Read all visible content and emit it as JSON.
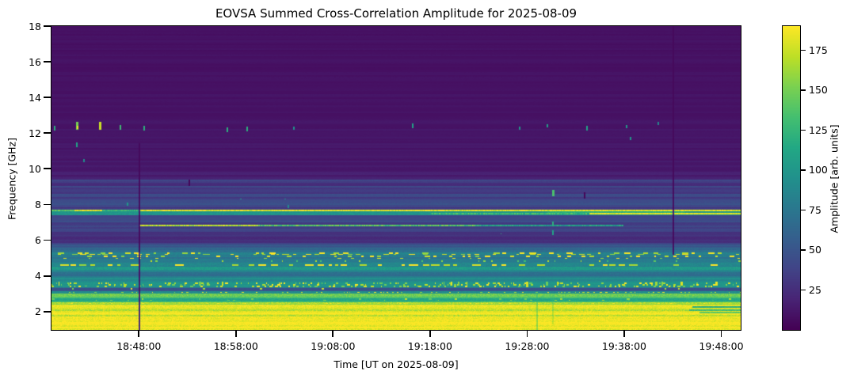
{
  "chart_data": {
    "type": "heatmap",
    "title": "EOVSA Summed Cross-Correlation Amplitude for 2025-08-09",
    "xlabel": "Time [UT on 2025-08-09]",
    "ylabel": "Frequency [GHz]",
    "x_range": [
      "18:39:00",
      "19:50:00"
    ],
    "x_ticks": [
      "18:48:00",
      "18:58:00",
      "19:08:00",
      "19:18:00",
      "19:28:00",
      "19:38:00",
      "19:48:00"
    ],
    "y_range": [
      0.97,
      18
    ],
    "y_ticks": [
      2,
      4,
      6,
      8,
      10,
      12,
      14,
      16,
      18
    ],
    "grid": false,
    "colorbar": {
      "label": "Amplitude [arb. units]",
      "ticks": [
        25,
        50,
        75,
        100,
        125,
        150,
        175
      ],
      "range": [
        0,
        190
      ],
      "colormap": "viridis",
      "position": "right"
    },
    "colormap_stops": [
      "#440154",
      "#482475",
      "#414487",
      "#355f8d",
      "#2a788e",
      "#21918c",
      "#22a884",
      "#44bf70",
      "#7ad151",
      "#bddf26",
      "#fde725"
    ],
    "render_seed": 7,
    "background_profile": [
      [
        18,
        9
      ],
      [
        13.5,
        9.5
      ],
      [
        12.5,
        11
      ],
      [
        11,
        12
      ],
      [
        10,
        13
      ],
      [
        9.6,
        16
      ],
      [
        9.3,
        28
      ],
      [
        8.8,
        34
      ],
      [
        8.2,
        38
      ],
      [
        7.8,
        37
      ],
      [
        7.68,
        40
      ],
      [
        7.4,
        38
      ],
      [
        7.0,
        36
      ],
      [
        6.5,
        32
      ],
      [
        6.25,
        27
      ],
      [
        5.9,
        29
      ],
      [
        5.6,
        48
      ],
      [
        5.35,
        68
      ],
      [
        5.0,
        82
      ],
      [
        4.7,
        82
      ],
      [
        4.45,
        96
      ],
      [
        4.1,
        74
      ],
      [
        3.8,
        90
      ],
      [
        3.6,
        94
      ],
      [
        3.4,
        92
      ],
      [
        3.28,
        48
      ],
      [
        3.16,
        60
      ],
      [
        3.05,
        95
      ],
      [
        2.9,
        145
      ],
      [
        2.7,
        118
      ],
      [
        2.55,
        150
      ],
      [
        2.42,
        172
      ],
      [
        2.32,
        186
      ],
      [
        1.0,
        186
      ]
    ],
    "row_banding": [
      {
        "f_hi": 18,
        "f_lo": 9.6,
        "strength": 0.22
      },
      {
        "f_hi": 9.6,
        "f_lo": 5.5,
        "strength": 0.3
      },
      {
        "f_hi": 5.5,
        "f_lo": 3.3,
        "strength": 0.18
      },
      {
        "f_hi": 3.3,
        "f_lo": 2.4,
        "strength": 0.12
      },
      {
        "f_hi": 2.4,
        "f_lo": 0.97,
        "strength": 0.04
      }
    ],
    "stripes": [
      {
        "f_hi": 9.38,
        "f_lo": 9.3,
        "amp": 40
      },
      {
        "f_hi": 9.05,
        "f_lo": 8.97,
        "amp": 42
      },
      {
        "f_hi": 8.6,
        "f_lo": 8.52,
        "amp": 45
      },
      {
        "f_hi": 8.14,
        "f_lo": 8.06,
        "amp": 44
      },
      {
        "f_hi": 7.92,
        "f_lo": 7.86,
        "amp": 40
      },
      {
        "f_hi": 7.68,
        "f_lo": 7.42,
        "amp": 98
      },
      {
        "f_hi": 7.62,
        "f_lo": 7.5,
        "amp": 118,
        "x0": 0.72,
        "x1": 0.92
      },
      {
        "f_hi": 6.22,
        "f_lo": 6.02,
        "amp": 22
      },
      {
        "f_hi": 5.96,
        "f_lo": 5.86,
        "amp": 25
      },
      {
        "f_hi": 5.52,
        "f_lo": 5.44,
        "amp": 62
      },
      {
        "f_hi": 5.4,
        "f_lo": 5.32,
        "amp": 70
      },
      {
        "f_hi": 5.32,
        "f_lo": 5.18,
        "amp": 85
      },
      {
        "f_hi": 5.16,
        "f_lo": 5.04,
        "amp": 82
      },
      {
        "f_hi": 4.74,
        "f_lo": 4.56,
        "amp": 88
      },
      {
        "f_hi": 4.5,
        "f_lo": 4.34,
        "amp": 102
      },
      {
        "f_hi": 4.22,
        "f_lo": 4.06,
        "amp": 70
      },
      {
        "f_hi": 3.32,
        "f_lo": 3.2,
        "amp": 46
      },
      {
        "f_hi": 3.16,
        "f_lo": 3.02,
        "amp": 92
      },
      {
        "f_hi": 3.0,
        "f_lo": 2.82,
        "amp": 148
      },
      {
        "f_hi": 2.74,
        "f_lo": 2.56,
        "amp": 112
      },
      {
        "f_hi": 2.54,
        "f_lo": 2.42,
        "amp": 168
      },
      {
        "f_hi": 2.12,
        "f_lo": 2.04,
        "amp": 168
      },
      {
        "f_hi": 1.82,
        "f_lo": 1.74,
        "amp": 170
      },
      {
        "f_hi": 2.32,
        "f_lo": 2.22,
        "amp": 118,
        "x0": 0.93,
        "x1": 1
      },
      {
        "f_hi": 2.14,
        "f_lo": 2.02,
        "amp": 128,
        "x0": 0.925,
        "x1": 1
      },
      {
        "f_hi": 1.98,
        "f_lo": 1.9,
        "amp": 140,
        "x0": 0.94,
        "x1": 1
      }
    ],
    "speckle_bands": [
      {
        "f_hi": 5.3,
        "f_lo": 5.2,
        "amp": 182,
        "density": 0.5,
        "dash": [
          3,
          9
        ],
        "gap": [
          2,
          7
        ],
        "rh": 2
      },
      {
        "f_hi": 5.14,
        "f_lo": 5.06,
        "amp": 178,
        "density": 0.45,
        "dash": [
          2,
          7
        ],
        "gap": [
          2,
          8
        ],
        "rh": 2
      },
      {
        "f_hi": 5.02,
        "f_lo": 4.96,
        "amp": 175,
        "density": 0.28,
        "dash": [
          2,
          5
        ],
        "gap": [
          3,
          9
        ],
        "rh": 2
      },
      {
        "f_hi": 4.86,
        "f_lo": 4.8,
        "amp": 150,
        "density": 0.22,
        "dash": [
          1,
          3
        ],
        "gap": [
          3,
          9
        ],
        "rh": 2
      },
      {
        "f_hi": 4.66,
        "f_lo": 4.58,
        "amp": 186,
        "density": 0.55,
        "dash": [
          4,
          12
        ],
        "gap": [
          2,
          6
        ],
        "rh": 2
      },
      {
        "f_hi": 3.64,
        "f_lo": 3.38,
        "amp": 170,
        "density": 0.42,
        "dash": [
          1,
          4
        ],
        "gap": [
          1,
          4
        ],
        "rh": 2
      },
      {
        "f_hi": 3.68,
        "f_lo": 3.42,
        "amp": 168,
        "density": 0.1,
        "dash": [
          1,
          3
        ],
        "gap": [
          2,
          9
        ],
        "rh": 5
      },
      {
        "f_hi": 3.3,
        "f_lo": 3.22,
        "amp": 172,
        "density": 0.08,
        "dash": [
          1,
          3
        ],
        "gap": [
          4,
          15
        ],
        "rh": 2
      },
      {
        "f_hi": 3.12,
        "f_lo": 3.05,
        "amp": 180,
        "density": 0.45,
        "dash": [
          1,
          3
        ],
        "gap": [
          2,
          5
        ],
        "rh": 2
      },
      {
        "f_hi": 2.76,
        "f_lo": 2.6,
        "amp": 152,
        "density": 0.16,
        "dash": [
          1,
          4
        ],
        "gap": [
          3,
          10
        ],
        "rh": 2
      },
      {
        "f_hi": 2.5,
        "f_lo": 2.44,
        "amp": 190,
        "density": 0.38,
        "dash": [
          1,
          3
        ],
        "gap": [
          2,
          6
        ],
        "rh": 2
      },
      {
        "f_hi": 6.4,
        "f_lo": 6.32,
        "amp": 112,
        "density": 0.05,
        "dash": [
          1,
          3
        ],
        "gap": [
          6,
          30
        ],
        "rh": 3
      },
      {
        "f_hi": 8.34,
        "f_lo": 8.27,
        "amp": 95,
        "density": 0.04,
        "dash": [
          1,
          3
        ],
        "gap": [
          8,
          40
        ],
        "rh": 3
      },
      {
        "f_hi": 12.55,
        "f_lo": 11.95,
        "amp": 55,
        "density": 0.012,
        "dash": [
          1,
          2
        ],
        "gap": [
          12,
          70
        ],
        "rh": 3
      }
    ],
    "lines": [
      {
        "f": 7.65,
        "amp": 140,
        "x0": 0,
        "x1": 0.033,
        "w": 2,
        "flicker": 0.1
      },
      {
        "f": 7.65,
        "amp": 180,
        "x0": 0.033,
        "x1": 0.073,
        "w": 2,
        "flicker": 0.08
      },
      {
        "f": 7.65,
        "amp": 125,
        "x0": 0.073,
        "x1": 0.127,
        "w": 2,
        "flicker": 0.1
      },
      {
        "f": 7.65,
        "amp": 183,
        "x0": 0.127,
        "x1": 1,
        "w": 2,
        "flicker": 0.08
      },
      {
        "f": 7.47,
        "amp": 130,
        "x0": 0.55,
        "x1": 0.78,
        "w": 2,
        "flicker": 0.15
      },
      {
        "f": 7.47,
        "amp": 183,
        "x0": 0.78,
        "x1": 1,
        "w": 2,
        "flicker": 0.06
      },
      {
        "f": 6.83,
        "amp": 168,
        "x0": 0.128,
        "x1": 0.3,
        "w": 2,
        "flicker": 0.12
      },
      {
        "f": 6.83,
        "amp": 138,
        "x0": 0.3,
        "x1": 0.62,
        "w": 2,
        "flicker": 0.15
      },
      {
        "f": 6.83,
        "amp": 105,
        "x0": 0.62,
        "x1": 0.83,
        "w": 2,
        "flicker": 0.2
      }
    ],
    "vertical_features": [
      {
        "x": 0.1264,
        "f_hi": 11.45,
        "f_lo": 0.97,
        "amp": 4,
        "w": 2,
        "blend": 0.9
      },
      {
        "x": 0.9011,
        "f_hi": 18,
        "f_lo": 5.2,
        "amp": 4,
        "w": 2,
        "blend": 0.9
      },
      {
        "x": 0.703,
        "f_hi": 3.05,
        "f_lo": 0.97,
        "amp": 120,
        "w": 2,
        "blend": 0.4
      },
      {
        "x": 0.727,
        "f_hi": 2.9,
        "f_lo": 1.3,
        "amp": 130,
        "w": 2,
        "blend": 0.3
      }
    ],
    "point_features": [
      {
        "x": 0.003,
        "f": 12.3,
        "amp": 120,
        "w": 2,
        "h": 5
      },
      {
        "x": 0.036,
        "f": 12.4,
        "amp": 150,
        "w": 3,
        "h": 9
      },
      {
        "x": 0.0365,
        "f": 12.33,
        "amp": 185,
        "w": 2,
        "h": 4
      },
      {
        "x": 0.069,
        "f": 12.4,
        "amp": 175,
        "w": 3,
        "h": 9
      },
      {
        "x": 0.099,
        "f": 12.33,
        "amp": 130,
        "w": 2,
        "h": 6
      },
      {
        "x": 0.133,
        "f": 12.3,
        "amp": 120,
        "w": 2,
        "h": 5
      },
      {
        "x": 0.254,
        "f": 12.18,
        "amp": 120,
        "w": 2,
        "h": 6
      },
      {
        "x": 0.283,
        "f": 12.22,
        "amp": 120,
        "w": 2,
        "h": 5
      },
      {
        "x": 0.351,
        "f": 12.3,
        "amp": 95,
        "w": 2,
        "h": 4
      },
      {
        "x": 0.523,
        "f": 12.42,
        "amp": 110,
        "w": 2,
        "h": 5
      },
      {
        "x": 0.678,
        "f": 12.3,
        "amp": 100,
        "w": 2,
        "h": 4
      },
      {
        "x": 0.718,
        "f": 12.42,
        "amp": 105,
        "w": 2,
        "h": 4
      },
      {
        "x": 0.776,
        "f": 12.3,
        "amp": 110,
        "w": 2,
        "h": 5
      },
      {
        "x": 0.833,
        "f": 12.36,
        "amp": 100,
        "w": 2,
        "h": 4
      },
      {
        "x": 0.879,
        "f": 12.55,
        "amp": 85,
        "w": 2,
        "h": 4
      },
      {
        "x": 0.839,
        "f": 11.7,
        "amp": 100,
        "w": 2,
        "h": 4
      },
      {
        "x": 0.036,
        "f": 11.35,
        "amp": 110,
        "w": 2,
        "h": 5
      },
      {
        "x": 0.046,
        "f": 10.45,
        "amp": 90,
        "w": 2,
        "h": 4
      },
      {
        "x": 0.727,
        "f": 8.65,
        "amp": 135,
        "w": 3,
        "h": 7
      },
      {
        "x": 0.727,
        "f": 6.9,
        "amp": 120,
        "w": 2,
        "h": 6
      },
      {
        "x": 0.727,
        "f": 6.42,
        "amp": 110,
        "w": 2,
        "h": 5
      },
      {
        "x": 0.109,
        "f": 8.02,
        "amp": 100,
        "w": 2,
        "h": 3
      },
      {
        "x": 0.343,
        "f": 7.9,
        "amp": 90,
        "w": 2,
        "h": 3
      },
      {
        "x": 0.199,
        "f": 9.2,
        "amp": 3,
        "w": 2,
        "h": 8
      },
      {
        "x": 0.772,
        "f": 8.52,
        "amp": 3,
        "w": 2,
        "h": 8
      }
    ]
  }
}
